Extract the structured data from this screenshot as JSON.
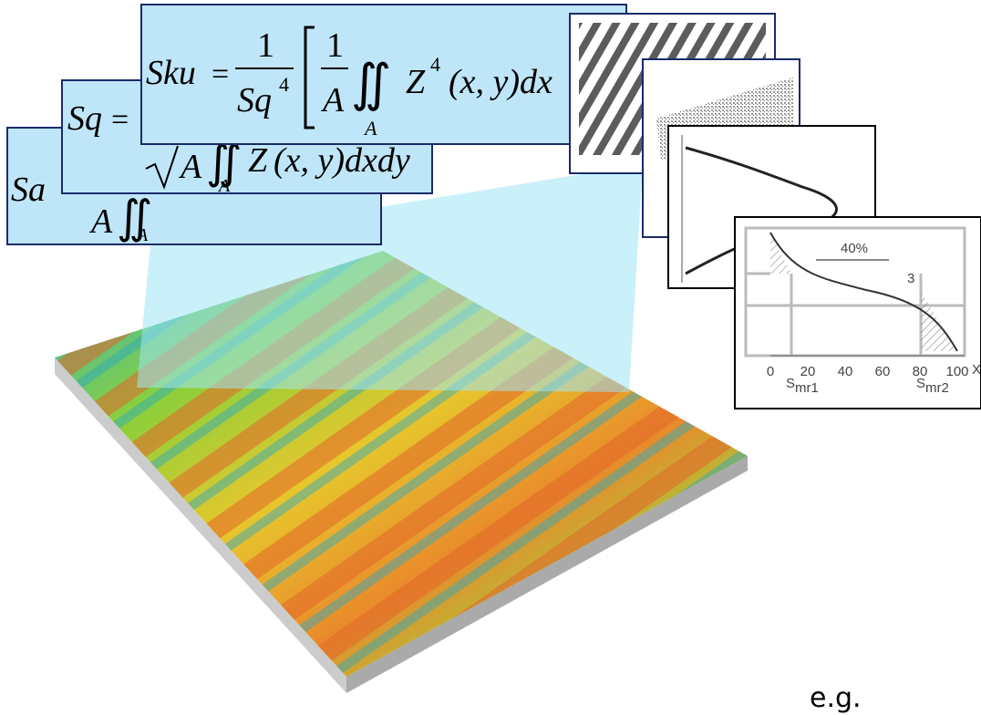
{
  "formulas": {
    "sa": {
      "lhs": "Sa",
      "denominator": "A",
      "integral": "∬",
      "domain": "A"
    },
    "sq": {
      "lhs": "Sq",
      "equals": "=",
      "denominator": "A",
      "integral": "∬",
      "domain": "A",
      "integrand": "Z",
      "tail": "(x, y)dxdy"
    },
    "sku": {
      "lhs": "Sku",
      "equals": "=",
      "numerator": "1",
      "denominator": "Sq",
      "power": "4",
      "inner_numerator": "1",
      "inner_denominator": "A",
      "integral": "∬",
      "domain": "A",
      "integrand": "Z",
      "integrand_power": "4",
      "tail": "(x, y)dx"
    }
  },
  "thumbnails": {
    "material_ratio": {
      "percent": "40%",
      "marker": "3",
      "xticks": [
        "0",
        "20",
        "40",
        "60",
        "80",
        "100"
      ],
      "smr1": {
        "base": "S",
        "sub": "mr1"
      },
      "smr2": {
        "base": "S",
        "sub": "mr2"
      },
      "axis": "X"
    }
  },
  "caption": "e.g."
}
